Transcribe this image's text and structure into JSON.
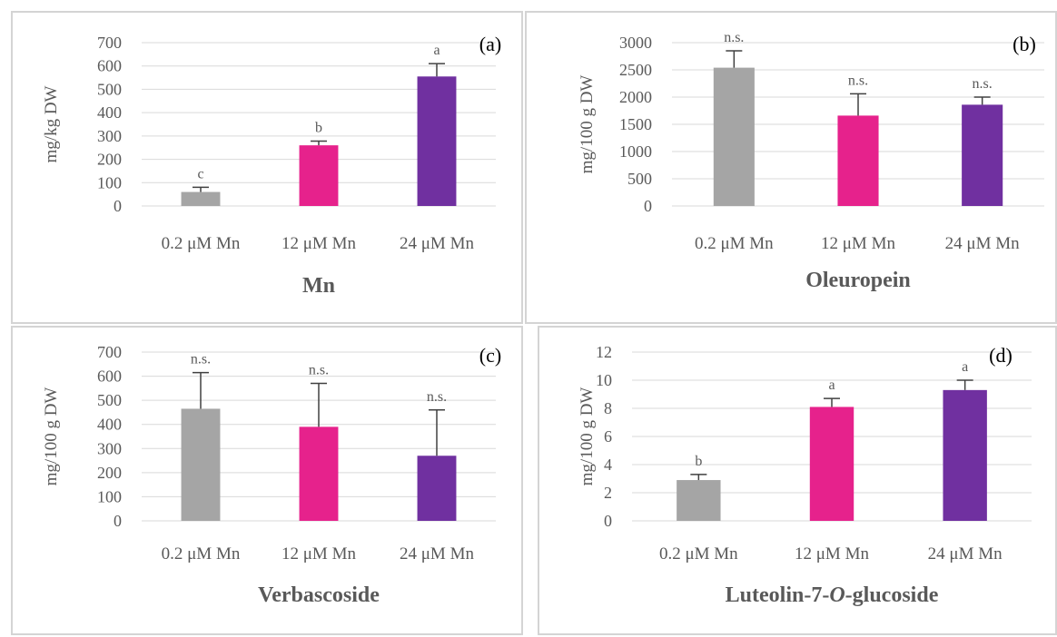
{
  "chart_data": [
    {
      "type": "bar",
      "panel_label": "(a)",
      "title": "Mn",
      "ylabel": "mg/kg DW",
      "categories": [
        "0.2 μM Mn",
        "12 μM Mn",
        "24 μM Mn"
      ],
      "values": [
        60,
        260,
        555
      ],
      "errors": [
        20,
        18,
        55
      ],
      "significance": [
        "c",
        "b",
        "a"
      ],
      "colors": [
        "#a5a5a5",
        "#e6228c",
        "#7030a0"
      ],
      "ylim": [
        0,
        700
      ],
      "yticks": [
        "0",
        "100",
        "200",
        "300",
        "400",
        "500",
        "600",
        "700"
      ],
      "grid": true
    },
    {
      "type": "bar",
      "panel_label": "(b)",
      "title": "Oleuropein",
      "ylabel": "mg/100 g DW",
      "categories": [
        "0.2 μM Mn",
        "12 μM Mn",
        "24 μM Mn"
      ],
      "values": [
        2540,
        1660,
        1860
      ],
      "errors": [
        310,
        400,
        140
      ],
      "significance": [
        "n.s.",
        "n.s.",
        "n.s."
      ],
      "colors": [
        "#a5a5a5",
        "#e6228c",
        "#7030a0"
      ],
      "ylim": [
        0,
        3000
      ],
      "yticks": [
        "0",
        "500",
        "1000",
        "1500",
        "2000",
        "2500",
        "3000"
      ],
      "grid": true
    },
    {
      "type": "bar",
      "panel_label": "(c)",
      "title": "Verbascoside",
      "ylabel": "mg/100 g DW",
      "categories": [
        "0.2 μM Mn",
        "12 μM Mn",
        "24 μM Mn"
      ],
      "values": [
        465,
        390,
        270
      ],
      "errors": [
        150,
        180,
        190
      ],
      "significance": [
        "n.s.",
        "n.s.",
        "n.s."
      ],
      "colors": [
        "#a5a5a5",
        "#e6228c",
        "#7030a0"
      ],
      "ylim": [
        0,
        700
      ],
      "yticks": [
        "0",
        "100",
        "200",
        "300",
        "400",
        "500",
        "600",
        "700"
      ],
      "grid": true
    },
    {
      "type": "bar",
      "panel_label": "(d)",
      "title": "Luteolin-7-O-glucoside",
      "title_parts": [
        "Luteolin-7-",
        "O",
        "-glucoside"
      ],
      "ylabel": "mg/100 g DW",
      "categories": [
        "0.2 μM Mn",
        "12 μM Mn",
        "24 μM Mn"
      ],
      "values": [
        2.9,
        8.1,
        9.3
      ],
      "errors": [
        0.4,
        0.6,
        0.7
      ],
      "significance": [
        "b",
        "a",
        "a"
      ],
      "colors": [
        "#a5a5a5",
        "#e6228c",
        "#7030a0"
      ],
      "ylim": [
        0,
        12
      ],
      "yticks": [
        "0",
        "2",
        "4",
        "6",
        "8",
        "10",
        "12"
      ],
      "grid": true
    }
  ]
}
